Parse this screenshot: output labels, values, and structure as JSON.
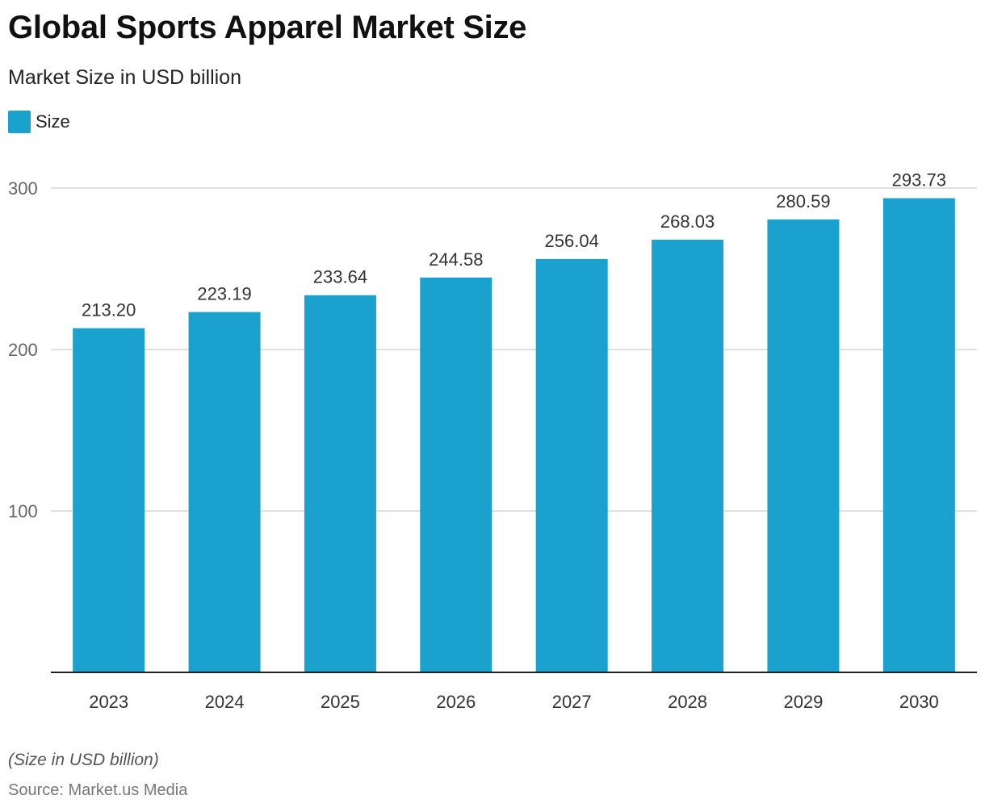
{
  "chart_data": {
    "type": "bar",
    "title": "Global Sports Apparel Market Size",
    "subtitle": "Market Size in USD billion",
    "categories": [
      "2023",
      "2024",
      "2025",
      "2026",
      "2027",
      "2028",
      "2029",
      "2030"
    ],
    "series": [
      {
        "name": "Size",
        "values": [
          213.2,
          223.19,
          233.64,
          244.58,
          256.04,
          268.03,
          280.59,
          293.73
        ],
        "labels": [
          "213.20",
          "223.19",
          "233.64",
          "244.58",
          "256.04",
          "268.03",
          "280.59",
          "293.73"
        ]
      }
    ],
    "ylim": [
      0,
      300
    ],
    "yticks": [
      100,
      200,
      300
    ],
    "ytick_labels": [
      "100",
      "200",
      "300"
    ],
    "grid": true,
    "legend_position": "top-left",
    "bar_color": "#1aa1cd",
    "footnote": "(Size in USD billion)",
    "source": "Source: Market.us Media"
  }
}
